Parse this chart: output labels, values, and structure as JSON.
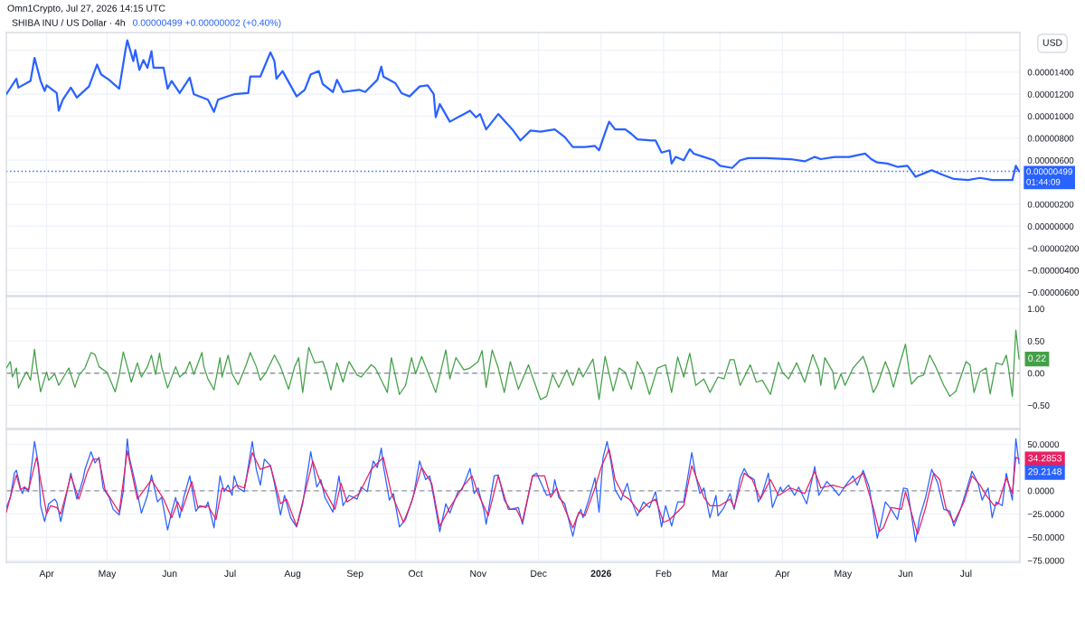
{
  "chart_data": [
    {
      "type": "line",
      "title": "SHIBA INU / US Dollar · 4h",
      "subtitle": "0.00000499 +0.00000002 (+0.40%)",
      "ylabel": "USD",
      "annotations": [
        "Omn1Crypto, Jul 27, 2026 14:15 UTC"
      ],
      "color": "#2962ff",
      "x": [
        "2025-03-12",
        "2025-03-17",
        "2025-03-18",
        "2025-03-24",
        "2025-03-26",
        "2025-03-29",
        "2025-03-31",
        "2025-04-01",
        "2025-04-06",
        "2025-04-07",
        "2025-04-09",
        "2025-04-13",
        "2025-04-16",
        "2025-04-22",
        "2025-04-26",
        "2025-04-28",
        "2025-05-02",
        "2025-05-07",
        "2025-05-10",
        "2025-05-11",
        "2025-05-14",
        "2025-05-15",
        "2025-05-17",
        "2025-05-19",
        "2025-05-21",
        "2025-05-23",
        "2025-05-24",
        "2025-05-29",
        "2025-05-31",
        "2025-06-02",
        "2025-06-06",
        "2025-06-11",
        "2025-06-13",
        "2025-06-20",
        "2025-06-23",
        "2025-06-25",
        "2025-07-03",
        "2025-07-10",
        "2025-07-11",
        "2025-07-16",
        "2025-07-21",
        "2025-07-23",
        "2025-07-24",
        "2025-07-27",
        "2025-08-03",
        "2025-08-07",
        "2025-08-10",
        "2025-08-14",
        "2025-08-16",
        "2025-08-21",
        "2025-08-23",
        "2025-08-26",
        "2025-09-03",
        "2025-09-06",
        "2025-09-12",
        "2025-09-14",
        "2025-09-15",
        "2025-09-21",
        "2025-09-24",
        "2025-09-28",
        "2025-10-03",
        "2025-10-07",
        "2025-10-10",
        "2025-10-11",
        "2025-10-13",
        "2025-10-18",
        "2025-10-28",
        "2025-10-31",
        "2025-11-02",
        "2025-11-05",
        "2025-11-11",
        "2025-11-18",
        "2025-11-22",
        "2025-11-27",
        "2025-12-02",
        "2025-12-09",
        "2025-12-14",
        "2025-12-18",
        "2025-12-24",
        "2025-12-29",
        "2025-12-31",
        "2026-01-03",
        "2026-01-05",
        "2026-01-08",
        "2026-01-13",
        "2026-01-16",
        "2026-01-19",
        "2026-01-26",
        "2026-01-28",
        "2026-01-31",
        "2026-02-04",
        "2026-02-05",
        "2026-02-07",
        "2026-02-11",
        "2026-02-14",
        "2026-02-16",
        "2026-02-21",
        "2026-02-26",
        "2026-03-01",
        "2026-03-07",
        "2026-03-11",
        "2026-03-15",
        "2026-03-24",
        "2026-04-05",
        "2026-04-12",
        "2026-04-17",
        "2026-04-20",
        "2026-04-27",
        "2026-05-04",
        "2026-05-12",
        "2026-05-15",
        "2026-05-18",
        "2026-05-23",
        "2026-05-28",
        "2026-06-02",
        "2026-06-06",
        "2026-06-10",
        "2026-06-14",
        "2026-06-19",
        "2026-06-25",
        "2026-07-02",
        "2026-07-08",
        "2026-07-14",
        "2026-07-21",
        "2026-07-24",
        "2026-07-25T18:00",
        "2026-07-27T08:00"
      ],
      "values": [
        1.2e-05,
        1.34e-05,
        1.26e-05,
        1.32e-05,
        1.53e-05,
        1.32e-05,
        1.23e-05,
        1.28e-05,
        1.21e-05,
        1.05e-05,
        1.15e-05,
        1.26e-05,
        1.17e-05,
        1.27e-05,
        1.47e-05,
        1.38e-05,
        1.33e-05,
        1.25e-05,
        1.59e-05,
        1.69e-05,
        1.5e-05,
        1.6e-05,
        1.42e-05,
        1.51e-05,
        1.44e-05,
        1.59e-05,
        1.44e-05,
        1.44e-05,
        1.25e-05,
        1.32e-05,
        1.21e-05,
        1.35e-05,
        1.2e-05,
        1.15e-05,
        1.04e-05,
        1.15e-05,
        1.2e-05,
        1.21e-05,
        1.36e-05,
        1.36e-05,
        1.58e-05,
        1.5e-05,
        1.34e-05,
        1.41e-05,
        1.18e-05,
        1.24e-05,
        1.38e-05,
        1.41e-05,
        1.29e-05,
        1.22e-05,
        1.33e-05,
        1.22e-05,
        1.24e-05,
        1.22e-05,
        1.33e-05,
        1.45e-05,
        1.36e-05,
        1.3e-05,
        1.21e-05,
        1.18e-05,
        1.27e-05,
        1.28e-05,
        1.2e-05,
        9.9e-06,
        1.11e-05,
        9.5e-06,
        1.05e-05,
        9.9e-06,
        1.02e-05,
        8.8e-06,
        1.02e-05,
        8.8e-06,
        7.8e-06,
        8.7e-06,
        8.6e-06,
        8.8e-06,
        8.1e-06,
        7.2e-06,
        7.2e-06,
        7.3e-06,
        6.9e-06,
        8.5e-06,
        9.5e-06,
        8.8e-06,
        8.8e-06,
        8.4e-06,
        7.9e-06,
        7.8e-06,
        7.8e-06,
        6.7e-06,
        6.9e-06,
        5.7e-06,
        6.3e-06,
        6e-06,
        7e-06,
        6.6e-06,
        6.3e-06,
        6e-06,
        5.5e-06,
        5.3e-06,
        6e-06,
        6.2e-06,
        6.2e-06,
        6.1e-06,
        5.9e-06,
        6.3e-06,
        6.1e-06,
        6.3e-06,
        6.3e-06,
        6.6e-06,
        6.1e-06,
        5.8e-06,
        5.7e-06,
        5.4e-06,
        5.5e-06,
        4.5e-06,
        4.8e-06,
        5.1e-06,
        4.7e-06,
        4.3e-06,
        4.2e-06,
        4.4e-06,
        4.2e-06,
        4.2e-06,
        4.2e-06,
        5.5e-06,
        4.99e-06
      ],
      "xlim": [
        "2025-03-12",
        "2026-07-27T18:00"
      ],
      "ylim": [
        -6.3e-06,
        1.76e-05
      ],
      "xticks": [
        {
          "value": "2025-04-01",
          "label": null
        },
        {
          "value": "2025-05-01",
          "label": null
        },
        {
          "value": "2025-06-01",
          "label": null
        },
        {
          "value": "2025-07-01",
          "label": null
        },
        {
          "value": "2025-08-01",
          "label": null
        },
        {
          "value": "2025-09-01",
          "label": null
        },
        {
          "value": "2025-10-01",
          "label": null
        },
        {
          "value": "2025-11-01",
          "label": null
        },
        {
          "value": "2025-12-01",
          "label": null
        },
        {
          "value": "2026-01-01",
          "label": null
        },
        {
          "value": "2026-02-01",
          "label": null
        },
        {
          "value": "2026-03-01",
          "label": null
        },
        {
          "value": "2026-04-01",
          "label": null
        },
        {
          "value": "2026-05-01",
          "label": null
        },
        {
          "value": "2026-06-01",
          "label": null
        },
        {
          "value": "2026-07-01",
          "label": null
        }
      ],
      "yticks": [
        {
          "value": 1.6e-05,
          "label": null
        },
        {
          "value": 1.4e-05,
          "label": "0.00001400"
        },
        {
          "value": 1.2e-05,
          "label": "0.00001200"
        },
        {
          "value": 1e-05,
          "label": "0.00001000"
        },
        {
          "value": 8e-06,
          "label": "0.00000800"
        },
        {
          "value": 6e-06,
          "label": "0.00000600"
        },
        {
          "value": 4e-06,
          "label": null
        },
        {
          "value": 2e-06,
          "label": "0.00000200"
        },
        {
          "value": 0,
          "label": "0.00000000"
        },
        {
          "value": -2e-06,
          "label": "−0.00000200"
        },
        {
          "value": -4e-06,
          "label": "−0.00000400"
        },
        {
          "value": -6e-06,
          "label": "−0.00000600"
        }
      ],
      "ref_lines": [
        {
          "axis": "y",
          "value": 4.99e-06,
          "label": "0.00000499\n01:44:09",
          "color": "#2962ff",
          "line_style": "dotted"
        }
      ],
      "grid": true,
      "tick_labels": "y"
    },
    {
      "type": "line",
      "color": "#43a047",
      "x": [
        "2025-03-12",
        "2025-03-14",
        "2025-03-15",
        "2025-03-17",
        "2025-03-18",
        "2025-03-20",
        "2025-03-22",
        "2025-03-24",
        "2025-03-26",
        "2025-03-27",
        "2025-03-29",
        "2025-04-01",
        "2025-04-02",
        "2025-04-05",
        "2025-04-07",
        "2025-04-12",
        "2025-04-15",
        "2025-04-17",
        "2025-04-20",
        "2025-04-23",
        "2025-04-25",
        "2025-04-27",
        "2025-05-01",
        "2025-05-03",
        "2025-05-05",
        "2025-05-07",
        "2025-05-09",
        "2025-05-11",
        "2025-05-13",
        "2025-05-16",
        "2025-05-18",
        "2025-05-21",
        "2025-05-23",
        "2025-05-25",
        "2025-05-27",
        "2025-05-28",
        "2025-05-31",
        "2025-06-04",
        "2025-06-06",
        "2025-06-09",
        "2025-06-11",
        "2025-06-13",
        "2025-06-17",
        "2025-06-18",
        "2025-06-20",
        "2025-06-23",
        "2025-06-26",
        "2025-06-27",
        "2025-06-30",
        "2025-07-02",
        "2025-07-05",
        "2025-07-09",
        "2025-07-11",
        "2025-07-14",
        "2025-07-16",
        "2025-07-19",
        "2025-07-23",
        "2025-07-26",
        "2025-07-30",
        "2025-08-02",
        "2025-08-04",
        "2025-08-06",
        "2025-08-09",
        "2025-08-12",
        "2025-08-16",
        "2025-08-18",
        "2025-08-20",
        "2025-08-23",
        "2025-08-26",
        "2025-08-29",
        "2025-09-02",
        "2025-09-04",
        "2025-09-09",
        "2025-09-11",
        "2025-09-14",
        "2025-09-17",
        "2025-09-19",
        "2025-09-23",
        "2025-09-26",
        "2025-09-29",
        "2025-10-01",
        "2025-10-04",
        "2025-10-07",
        "2025-10-11",
        "2025-10-16",
        "2025-10-18",
        "2025-10-21",
        "2025-10-25",
        "2025-10-28",
        "2025-11-01",
        "2025-11-03",
        "2025-11-05",
        "2025-11-08",
        "2025-11-11",
        "2025-11-14",
        "2025-11-17",
        "2025-11-21",
        "2025-11-26",
        "2025-11-28",
        "2025-12-02",
        "2025-12-05",
        "2025-12-08",
        "2025-12-11",
        "2025-12-15",
        "2025-12-18",
        "2025-12-21",
        "2025-12-23",
        "2025-12-28",
        "2025-12-31",
        "2026-01-03",
        "2026-01-07",
        "2026-01-10",
        "2026-01-13",
        "2026-01-16",
        "2026-01-19",
        "2026-01-22",
        "2026-01-25",
        "2026-01-29",
        "2026-02-02",
        "2026-02-05",
        "2026-02-08",
        "2026-02-11",
        "2026-02-14",
        "2026-02-17",
        "2026-02-21",
        "2026-02-24",
        "2026-02-28",
        "2026-03-03",
        "2026-03-06",
        "2026-03-08",
        "2026-03-11",
        "2026-03-16",
        "2026-03-19",
        "2026-03-22",
        "2026-03-26",
        "2026-03-30",
        "2026-04-01",
        "2026-04-04",
        "2026-04-08",
        "2026-04-12",
        "2026-04-16",
        "2026-04-19",
        "2026-04-20",
        "2026-04-22",
        "2026-04-26",
        "2026-04-27",
        "2026-04-30",
        "2026-05-02",
        "2026-05-06",
        "2026-05-11",
        "2026-05-13",
        "2026-05-16",
        "2026-05-18",
        "2026-05-22",
        "2026-05-24",
        "2026-05-26",
        "2026-05-29",
        "2026-06-01",
        "2026-06-03",
        "2026-06-04",
        "2026-06-07",
        "2026-06-10",
        "2026-06-13",
        "2026-06-16",
        "2026-06-20",
        "2026-06-23",
        "2026-06-26",
        "2026-07-01",
        "2026-07-03",
        "2026-07-05",
        "2026-07-08",
        "2026-07-11",
        "2026-07-13",
        "2026-07-16",
        "2026-07-19",
        "2026-07-21",
        "2026-07-22",
        "2026-07-24",
        "2026-07-25T18:00",
        "2026-07-27T08:00"
      ],
      "values": [
        0.08,
        0.18,
        -0.06,
        0.08,
        -0.23,
        -0.09,
        0.02,
        -0.11,
        0.37,
        0.1,
        -0.29,
        0.02,
        -0.11,
        -0.01,
        -0.19,
        0.08,
        -0.22,
        -0.03,
        0.08,
        0.32,
        0.29,
        0.1,
        0.01,
        -0.14,
        -0.29,
        -0.03,
        0.33,
        0.1,
        -0.14,
        0.16,
        -0.06,
        0.1,
        0.28,
        -0.02,
        0.31,
        0.1,
        -0.23,
        0.1,
        -0.06,
        0.02,
        0.18,
        -0.02,
        0.32,
        0.1,
        -0.09,
        -0.26,
        0.24,
        -0.06,
        0.28,
        -0.01,
        -0.18,
        0.13,
        0.32,
        0.1,
        -0.11,
        0.02,
        0.28,
        0.1,
        -0.25,
        0.1,
        0.24,
        -0.3,
        0.4,
        0.16,
        0.18,
        -0.01,
        -0.26,
        0.16,
        -0.14,
        0.18,
        -0.03,
        -0.06,
        0.13,
        0.08,
        -0.11,
        -0.3,
        0.24,
        -0.33,
        -0.19,
        0.24,
        -0.01,
        0.26,
        0.02,
        -0.3,
        0.36,
        -0.09,
        0.24,
        0.05,
        0.08,
        0.18,
        0.35,
        -0.22,
        0.36,
        0.08,
        -0.3,
        0.18,
        -0.25,
        0.13,
        -0.06,
        -0.41,
        -0.36,
        -0.02,
        -0.22,
        0.05,
        -0.19,
        0.08,
        -0.06,
        0.22,
        -0.41,
        0.26,
        -0.28,
        0.08,
        0.01,
        -0.25,
        0.18,
        -0.01,
        -0.33,
        0.08,
        0.13,
        -0.3,
        0.25,
        -0.06,
        0.31,
        -0.19,
        -0.09,
        -0.3,
        -0.06,
        -0.09,
        0.21,
        0.21,
        -0.19,
        0.13,
        -0.14,
        -0.11,
        -0.33,
        0.17,
        0.01,
        -0.09,
        0.16,
        -0.14,
        0.29,
        0.05,
        -0.19,
        0.24,
        0.02,
        -0.25,
        -0.01,
        -0.19,
        0.08,
        0.26,
        0.08,
        -0.3,
        -0.19,
        0.18,
        0.02,
        -0.22,
        0.13,
        0.45,
        -0.01,
        -0.17,
        -0.06,
        -0.03,
        0.28,
        0.1,
        -0.19,
        -0.36,
        -0.28,
        0.18,
        0.13,
        -0.3,
        0.02,
        0.08,
        -0.32,
        0.16,
        0.13,
        0.28,
        0.1,
        -0.36,
        0.67,
        0.22
      ],
      "xlim": [
        "2025-03-12",
        "2026-07-27T18:00"
      ],
      "ylim": [
        -0.86,
        1.19
      ],
      "xticks": [
        {
          "value": "2025-04-01",
          "label": null
        },
        {
          "value": "2025-05-01",
          "label": null
        },
        {
          "value": "2025-06-01",
          "label": null
        },
        {
          "value": "2025-07-01",
          "label": null
        },
        {
          "value": "2025-08-01",
          "label": null
        },
        {
          "value": "2025-09-01",
          "label": null
        },
        {
          "value": "2025-10-01",
          "label": null
        },
        {
          "value": "2025-11-01",
          "label": null
        },
        {
          "value": "2025-12-01",
          "label": null
        },
        {
          "value": "2026-01-01",
          "label": null
        },
        {
          "value": "2026-02-01",
          "label": null
        },
        {
          "value": "2026-03-01",
          "label": null
        },
        {
          "value": "2026-04-01",
          "label": null
        },
        {
          "value": "2026-05-01",
          "label": null
        },
        {
          "value": "2026-06-01",
          "label": null
        },
        {
          "value": "2026-07-01",
          "label": null
        }
      ],
      "yticks": [
        {
          "value": 1,
          "label": "1.00"
        },
        {
          "value": 0.5,
          "label": "0.50"
        },
        {
          "value": 0,
          "label": "0.00"
        },
        {
          "value": -0.5,
          "label": "−0.50"
        }
      ],
      "ref_lines": [
        {
          "axis": "y",
          "value": 0,
          "color": "#9598a1",
          "line_style": "dashed"
        }
      ],
      "annotations": [
        {
          "text": "0.22",
          "x": "2026-07-27T08:00",
          "y": 0.22
        }
      ],
      "grid": true,
      "tick_labels": "y"
    },
    {
      "type": "line",
      "series": [
        {
          "color": "#2962ff",
          "x": [
            "2025-03-12",
            "2025-03-14",
            "2025-03-16",
            "2025-03-17",
            "2025-03-19",
            "2025-03-20",
            "2025-03-21",
            "2025-03-23",
            "2025-03-26",
            "2025-03-28",
            "2025-03-29",
            "2025-03-31",
            "2025-04-02",
            "2025-04-05",
            "2025-04-06",
            "2025-04-08",
            "2025-04-09",
            "2025-04-13",
            "2025-04-16",
            "2025-04-19",
            "2025-04-20",
            "2025-04-23",
            "2025-04-25",
            "2025-04-27",
            "2025-04-29",
            "2025-05-02",
            "2025-05-04",
            "2025-05-07",
            "2025-05-09",
            "2025-05-11",
            "2025-05-12",
            "2025-05-15",
            "2025-05-18",
            "2025-05-21",
            "2025-05-23",
            "2025-05-26",
            "2025-05-28",
            "2025-05-31",
            "2025-06-02",
            "2025-06-04",
            "2025-06-06",
            "2025-06-08",
            "2025-06-11",
            "2025-06-14",
            "2025-06-16",
            "2025-06-19",
            "2025-06-20",
            "2025-06-23",
            "2025-06-26",
            "2025-06-28",
            "2025-06-30",
            "2025-07-02",
            "2025-07-03",
            "2025-07-05",
            "2025-07-08",
            "2025-07-12",
            "2025-07-14",
            "2025-07-16",
            "2025-07-18",
            "2025-07-21",
            "2025-07-23",
            "2025-07-26",
            "2025-07-28",
            "2025-07-31",
            "2025-08-03",
            "2025-08-06",
            "2025-08-10",
            "2025-08-13",
            "2025-08-15",
            "2025-08-17",
            "2025-08-21",
            "2025-08-24",
            "2025-08-26",
            "2025-08-29",
            "2025-09-02",
            "2025-09-04",
            "2025-09-07",
            "2025-09-10",
            "2025-09-12",
            "2025-09-14",
            "2025-09-15",
            "2025-09-18",
            "2025-09-20",
            "2025-09-23",
            "2025-09-26",
            "2025-09-30",
            "2025-10-03",
            "2025-10-06",
            "2025-10-08",
            "2025-10-10",
            "2025-10-13",
            "2025-10-16",
            "2025-10-18",
            "2025-10-22",
            "2025-10-24",
            "2025-10-28",
            "2025-10-30",
            "2025-11-01",
            "2025-11-04",
            "2025-11-05",
            "2025-11-09",
            "2025-11-11",
            "2025-11-14",
            "2025-11-17",
            "2025-11-21",
            "2025-11-23",
            "2025-11-28",
            "2025-11-30",
            "2025-12-05",
            "2025-12-08",
            "2025-12-09",
            "2025-12-11",
            "2025-12-14",
            "2025-12-18",
            "2025-12-20",
            "2025-12-22",
            "2025-12-23",
            "2025-12-26",
            "2025-12-29",
            "2025-12-31",
            "2026-01-02",
            "2026-01-04",
            "2026-01-06",
            "2026-01-08",
            "2026-01-11",
            "2026-01-12",
            "2026-01-14",
            "2026-01-16",
            "2026-01-19",
            "2026-01-22",
            "2026-01-25",
            "2026-01-28",
            "2026-01-31",
            "2026-02-02",
            "2026-02-05",
            "2026-02-08",
            "2026-02-11",
            "2026-02-15",
            "2026-02-17",
            "2026-02-19",
            "2026-02-21",
            "2026-02-24",
            "2026-02-27",
            "2026-02-28",
            "2026-03-03",
            "2026-03-06",
            "2026-03-08",
            "2026-03-11",
            "2026-03-13",
            "2026-03-15",
            "2026-03-18",
            "2026-03-20",
            "2026-03-22",
            "2026-03-25",
            "2026-03-27",
            "2026-03-31",
            "2026-04-01",
            "2026-04-04",
            "2026-04-07",
            "2026-04-09",
            "2026-04-13",
            "2026-04-17",
            "2026-04-19",
            "2026-04-23",
            "2026-04-26",
            "2026-04-29",
            "2026-05-03",
            "2026-05-06",
            "2026-05-08",
            "2026-05-11",
            "2026-05-14",
            "2026-05-18",
            "2026-05-20",
            "2026-05-22",
            "2026-05-25",
            "2026-05-28",
            "2026-05-31",
            "2026-06-02",
            "2026-06-06",
            "2026-06-08",
            "2026-06-11",
            "2026-06-14",
            "2026-06-17",
            "2026-06-20",
            "2026-06-23",
            "2026-06-25",
            "2026-06-28",
            "2026-07-01",
            "2026-07-04",
            "2026-07-07",
            "2026-07-09",
            "2026-07-12",
            "2026-07-14",
            "2026-07-16",
            "2026-07-19",
            "2026-07-21",
            "2026-07-24",
            "2026-07-25T18:00",
            "2026-07-27T08:00"
          ],
          "values": [
            -18,
            -7,
            19,
            22,
            3,
            -3,
            4,
            -1,
            53,
            27,
            -16,
            -33,
            -14,
            -9,
            -12,
            -33,
            -23,
            19,
            -9,
            12,
            23,
            42,
            30,
            36,
            3,
            -7,
            -20,
            -26,
            -1,
            56,
            36,
            8,
            -24,
            -5,
            17,
            -12,
            -7,
            -42,
            -23,
            -7,
            -29,
            -7,
            16,
            -22,
            -16,
            -18,
            -12,
            -40,
            16,
            -1,
            6,
            -5,
            16,
            3,
            -1,
            53,
            23,
            6,
            34,
            27,
            8,
            -26,
            -5,
            -29,
            -39,
            -14,
            42,
            4,
            12,
            -7,
            -23,
            16,
            -16,
            -5,
            -9,
            4,
            -1,
            32,
            25,
            46,
            27,
            -10,
            -3,
            -39,
            -31,
            -5,
            32,
            12,
            16,
            -7,
            -44,
            -14,
            -24,
            -1,
            1,
            24,
            -3,
            3,
            -22,
            -36,
            16,
            17,
            -10,
            -20,
            -18,
            -36,
            16,
            19,
            -5,
            -3,
            12,
            -7,
            -14,
            -49,
            -29,
            -20,
            -29,
            -9,
            14,
            -23,
            36,
            53,
            30,
            1,
            -10,
            -3,
            8,
            -10,
            -27,
            -12,
            -18,
            -1,
            -39,
            -16,
            -38,
            -12,
            -12,
            41,
            16,
            -3,
            3,
            -29,
            -5,
            -27,
            -18,
            -3,
            -20,
            14,
            24,
            16,
            12,
            -12,
            -3,
            19,
            -18,
            4,
            -1,
            6,
            -5,
            4,
            -14,
            26,
            -5,
            10,
            3,
            -5,
            8,
            16,
            6,
            22,
            4,
            -51,
            -33,
            -12,
            -20,
            -31,
            3,
            2,
            -55,
            -29,
            -7,
            23,
            8,
            -20,
            -22,
            -38,
            -22,
            -1,
            21,
            8,
            -10,
            3,
            -29,
            -12,
            -16,
            19,
            -10,
            56,
            29.2148
          ]
        },
        {
          "color": "#e91e63",
          "x": [
            "2025-03-12",
            "2025-03-17",
            "2025-03-19",
            "2025-03-21",
            "2025-03-23",
            "2025-03-27",
            "2025-04-01",
            "2025-04-03",
            "2025-04-06",
            "2025-04-08",
            "2025-04-13",
            "2025-04-17",
            "2025-04-21",
            "2025-04-24",
            "2025-04-27",
            "2025-04-30",
            "2025-05-07",
            "2025-05-11",
            "2025-05-16",
            "2025-05-23",
            "2025-05-29",
            "2025-06-02",
            "2025-06-05",
            "2025-06-07",
            "2025-06-12",
            "2025-06-15",
            "2025-06-20",
            "2025-06-24",
            "2025-06-27",
            "2025-07-01",
            "2025-07-04",
            "2025-07-08",
            "2025-07-12",
            "2025-07-16",
            "2025-07-21",
            "2025-07-26",
            "2025-07-29",
            "2025-08-03",
            "2025-08-11",
            "2025-08-15",
            "2025-08-22",
            "2025-08-25",
            "2025-08-28",
            "2025-09-03",
            "2025-09-09",
            "2025-09-15",
            "2025-09-19",
            "2025-09-25",
            "2025-09-29",
            "2025-10-04",
            "2025-10-09",
            "2025-10-13",
            "2025-10-18",
            "2025-10-25",
            "2025-10-29",
            "2025-11-01",
            "2025-11-06",
            "2025-11-11",
            "2025-11-16",
            "2025-11-20",
            "2025-11-23",
            "2025-11-28",
            "2025-12-04",
            "2025-12-07",
            "2025-12-10",
            "2025-12-12",
            "2025-12-18",
            "2025-12-21",
            "2025-12-24",
            "2025-12-29",
            "2026-01-01",
            "2026-01-05",
            "2026-01-08",
            "2026-01-12",
            "2026-01-15",
            "2026-01-20",
            "2026-01-24",
            "2026-01-28",
            "2026-02-01",
            "2026-02-04",
            "2026-02-11",
            "2026-02-15",
            "2026-02-21",
            "2026-02-24",
            "2026-03-01",
            "2026-03-06",
            "2026-03-08",
            "2026-03-13",
            "2026-03-17",
            "2026-03-21",
            "2026-03-26",
            "2026-03-30",
            "2026-04-05",
            "2026-04-12",
            "2026-04-17",
            "2026-04-20",
            "2026-04-26",
            "2026-05-01",
            "2026-05-06",
            "2026-05-11",
            "2026-05-16",
            "2026-05-19",
            "2026-05-21",
            "2026-05-25",
            "2026-05-30",
            "2026-06-01",
            "2026-06-07",
            "2026-06-11",
            "2026-06-15",
            "2026-06-18",
            "2026-06-21",
            "2026-06-25",
            "2026-06-30",
            "2026-07-04",
            "2026-07-08",
            "2026-07-11",
            "2026-07-15",
            "2026-07-17",
            "2026-07-21",
            "2026-07-24",
            "2026-07-25T18:00",
            "2026-07-27T08:00"
          ],
          "values": [
            -23,
            17,
            1,
            4,
            1,
            36,
            -25,
            -16,
            -18,
            -25,
            16,
            -9,
            19,
            34,
            34,
            1,
            -23,
            43,
            -9,
            12,
            -9,
            -29,
            -12,
            -22,
            10,
            -18,
            -16,
            -31,
            3,
            -1,
            6,
            3,
            41,
            23,
            27,
            -14,
            -9,
            -38,
            32,
            8,
            -20,
            8,
            -12,
            -3,
            23,
            36,
            -3,
            -34,
            -12,
            25,
            8,
            -38,
            -18,
            6,
            16,
            -3,
            -27,
            16,
            -20,
            -20,
            -33,
            16,
            16,
            -7,
            3,
            -9,
            -40,
            -23,
            -27,
            3,
            25,
            45,
            12,
            -5,
            -9,
            -23,
            -14,
            -9,
            -34,
            -31,
            -16,
            27,
            -7,
            -16,
            -16,
            -9,
            -18,
            19,
            12,
            -9,
            12,
            -5,
            3,
            -3,
            21,
            3,
            6,
            3,
            10,
            19,
            -18,
            -44,
            -40,
            -18,
            -20,
            -1,
            -47,
            -18,
            19,
            12,
            -18,
            -34,
            -12,
            16,
            6,
            -5,
            -16,
            -14,
            14,
            -3,
            36,
            34.2853
          ]
        }
      ],
      "xlim": [
        "2025-03-12",
        "2026-07-27T18:00"
      ],
      "ylim": [
        -77,
        66
      ],
      "xticks": [
        {
          "value": "2025-04-01",
          "label": "Apr"
        },
        {
          "value": "2025-05-01",
          "label": "May"
        },
        {
          "value": "2025-06-01",
          "label": "Jun"
        },
        {
          "value": "2025-07-01",
          "label": "Jul"
        },
        {
          "value": "2025-08-01",
          "label": "Aug"
        },
        {
          "value": "2025-09-01",
          "label": "Sep"
        },
        {
          "value": "2025-10-01",
          "label": "Oct"
        },
        {
          "value": "2025-11-01",
          "label": "Nov"
        },
        {
          "value": "2025-12-01",
          "label": "Dec"
        },
        {
          "value": "2026-01-01",
          "label": "2026"
        },
        {
          "value": "2026-02-01",
          "label": "Feb"
        },
        {
          "value": "2026-03-01",
          "label": "Mar"
        },
        {
          "value": "2026-04-01",
          "label": "Apr"
        },
        {
          "value": "2026-05-01",
          "label": "May"
        },
        {
          "value": "2026-06-01",
          "label": "Jun"
        },
        {
          "value": "2026-07-01",
          "label": "Jul"
        }
      ],
      "yticks": [
        {
          "value": 50,
          "label": "50.0000"
        },
        {
          "value": 25,
          "label": null
        },
        {
          "value": 0,
          "label": "0.0000"
        },
        {
          "value": -25,
          "label": "−25.0000"
        },
        {
          "value": -50,
          "label": "−50.0000"
        },
        {
          "value": -75,
          "label": "−75.0000"
        }
      ],
      "ref_lines": [
        {
          "axis": "y",
          "value": 0,
          "color": "#9598a1",
          "line_style": "dashed"
        }
      ],
      "annotations": [
        {
          "text": "34.2853",
          "x": "2026-07-27T08:00",
          "y": 34.2853
        },
        {
          "text": "29.2148",
          "x": "2026-07-27T08:00",
          "y": 29.2148
        }
      ],
      "grid": true
    }
  ]
}
